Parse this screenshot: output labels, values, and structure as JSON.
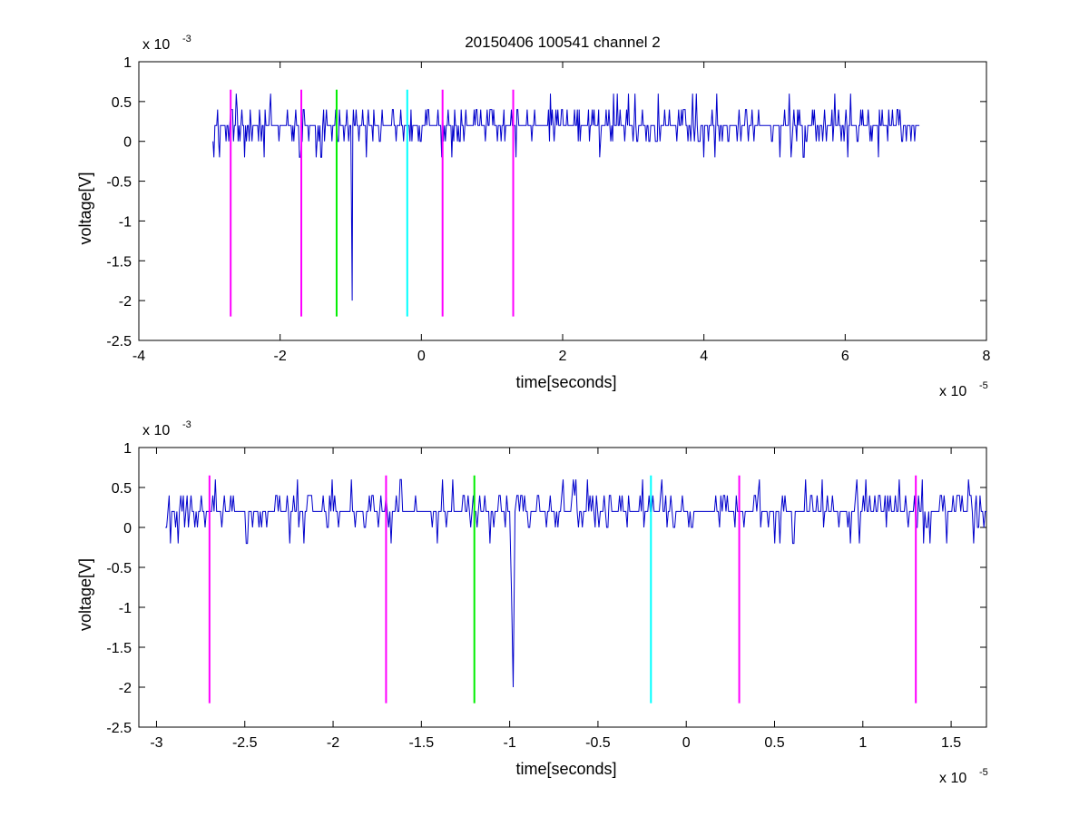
{
  "figure": {
    "title": "20150406 100541 channel 2"
  },
  "chart_data": [
    {
      "type": "line",
      "name": "full-trace",
      "xlabel": "time[seconds]",
      "ylabel": "voltage[V]",
      "x_exponent": "x 10",
      "x_exponent_power": "-5",
      "y_exponent": "x 10",
      "y_exponent_power": "-3",
      "xlim": [
        -4,
        8
      ],
      "ylim": [
        -2.5,
        1
      ],
      "xticks": [
        -4,
        -2,
        0,
        2,
        4,
        6,
        8
      ],
      "xtick_labels": [
        "-4",
        "-2",
        "0",
        "2",
        "4",
        "6",
        "8"
      ],
      "yticks": [
        -2.5,
        -2,
        -1.5,
        -1,
        -0.5,
        0,
        0.5,
        1
      ],
      "ytick_labels": [
        "-2.5",
        "-2",
        "-1.5",
        "-1",
        "-0.5",
        "0",
        "0.5",
        "1"
      ],
      "grid": false,
      "trace_color": "#0000cc",
      "trace": {
        "x_start": -2.95,
        "x_end": 7.05,
        "levels": [
          0,
          0.2,
          0.4,
          0.6,
          -0.2
        ],
        "spike": {
          "x": -0.985,
          "points": [
            [
              -1.0,
              0.2
            ],
            [
              -0.99,
              -0.8
            ],
            [
              -0.98,
              -2.0
            ],
            [
              -0.97,
              0.2
            ]
          ]
        }
      },
      "markers": [
        {
          "x": -2.7,
          "color": "#ff00ff"
        },
        {
          "x": -1.7,
          "color": "#ff00ff"
        },
        {
          "x": -1.2,
          "color": "#00ee00"
        },
        {
          "x": -0.2,
          "color": "#00ffff"
        },
        {
          "x": 0.3,
          "color": "#ff00ff"
        },
        {
          "x": 1.3,
          "color": "#ff00ff"
        }
      ],
      "marker_range": [
        -2.2,
        0.65
      ]
    },
    {
      "type": "line",
      "name": "zoomed-trace",
      "xlabel": "time[seconds]",
      "ylabel": "voltage[V]",
      "x_exponent": "x 10",
      "x_exponent_power": "-5",
      "y_exponent": "x 10",
      "y_exponent_power": "-3",
      "xlim": [
        -3.1,
        1.7
      ],
      "ylim": [
        -2.5,
        1
      ],
      "xticks": [
        -3,
        -2.5,
        -2,
        -1.5,
        -1,
        -0.5,
        0,
        0.5,
        1,
        1.5
      ],
      "xtick_labels": [
        "-3",
        "-2.5",
        "-2",
        "-1.5",
        "-1",
        "-0.5",
        "0",
        "0.5",
        "1",
        "1.5"
      ],
      "yticks": [
        -2.5,
        -2,
        -1.5,
        -1,
        -0.5,
        0,
        0.5,
        1
      ],
      "ytick_labels": [
        "-2.5",
        "-2",
        "-1.5",
        "-1",
        "-0.5",
        "0",
        "0.5",
        "1"
      ],
      "grid": false,
      "trace_color": "#0000cc",
      "trace": {
        "x_start": -2.95,
        "x_end": 1.7,
        "levels": [
          0,
          0.2,
          0.4,
          0.6,
          -0.2
        ],
        "spike": {
          "x": -0.985,
          "points": [
            [
              -1.0,
              0.2
            ],
            [
              -0.99,
              -0.8
            ],
            [
              -0.98,
              -2.0
            ],
            [
              -0.97,
              0.2
            ]
          ]
        }
      },
      "markers": [
        {
          "x": -2.7,
          "color": "#ff00ff"
        },
        {
          "x": -1.7,
          "color": "#ff00ff"
        },
        {
          "x": -1.2,
          "color": "#00ee00"
        },
        {
          "x": -0.2,
          "color": "#00ffff"
        },
        {
          "x": 0.3,
          "color": "#ff00ff"
        },
        {
          "x": 1.3,
          "color": "#ff00ff"
        }
      ],
      "marker_range": [
        -2.2,
        0.65
      ]
    }
  ]
}
